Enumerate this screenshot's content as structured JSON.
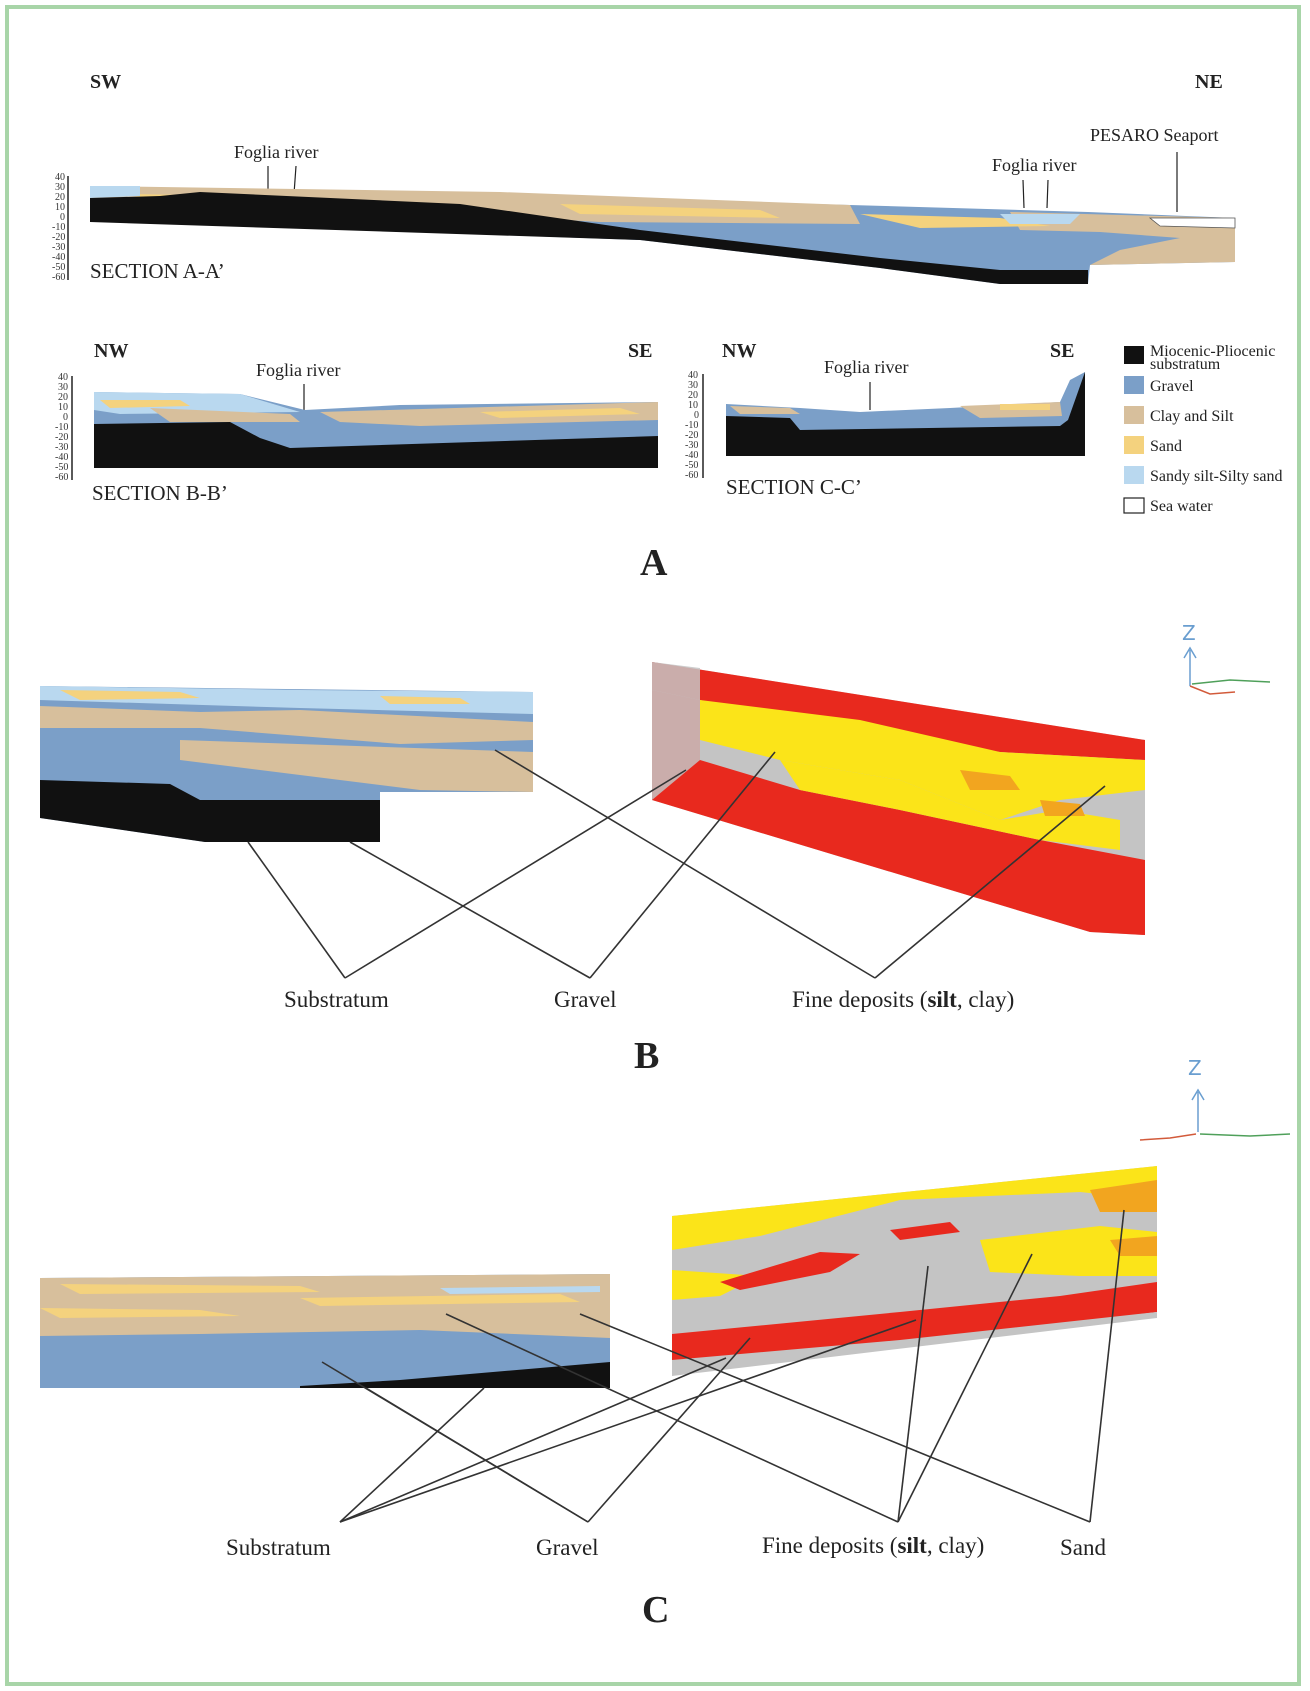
{
  "colors": {
    "substratum": "#111111",
    "gravel": "#7b9fc8",
    "clay_silt": "#d7bf9c",
    "sand": "#f4d27e",
    "sandy_silt": "#b9d8ef",
    "sea_water": "#ffffff",
    "model_red": "#e8291e",
    "model_yellow": "#fbe419",
    "model_grey": "#c4c4c4",
    "model_orange": "#f2a51f",
    "frame": "#a8d5a8"
  },
  "panel_a": {
    "label": "A",
    "section_aa": {
      "title": "SECTION A-A’",
      "left_dir": "SW",
      "right_dir": "NE",
      "annotations": [
        "Foglia river",
        "Foglia river",
        "PESARO Seaport"
      ]
    },
    "section_bb": {
      "title": "SECTION B-B’",
      "left_dir": "NW",
      "right_dir": "SE",
      "annotations": [
        "Foglia river"
      ]
    },
    "section_cc": {
      "title": "SECTION C-C’",
      "left_dir": "NW",
      "right_dir": "SE",
      "annotations": [
        "Foglia river"
      ]
    },
    "depth_ticks": [
      "40",
      "30",
      "20",
      "10",
      "0",
      "-10",
      "-20",
      "-30",
      "-40",
      "-50",
      "-60"
    ],
    "legend": [
      {
        "label": "Miocenic-Pliocenic",
        "label2": "substratum",
        "color_key": "substratum"
      },
      {
        "label": "Gravel",
        "color_key": "gravel"
      },
      {
        "label": "Clay and Silt",
        "color_key": "clay_silt"
      },
      {
        "label": "Sand",
        "color_key": "sand"
      },
      {
        "label": "Sandy silt-Silty sand",
        "color_key": "sandy_silt"
      },
      {
        "label": "Sea water",
        "color_key": "sea_water"
      }
    ]
  },
  "panel_b": {
    "label": "B",
    "labels": [
      "Substratum",
      "Gravel",
      "Fine deposits (",
      "silt",
      ", clay)"
    ],
    "axis_letter": "Z"
  },
  "panel_c": {
    "label": "C",
    "labels": [
      "Substratum",
      "Gravel",
      "Fine deposits (",
      "silt",
      ", clay)",
      "Sand"
    ],
    "axis_letter": "Z"
  }
}
